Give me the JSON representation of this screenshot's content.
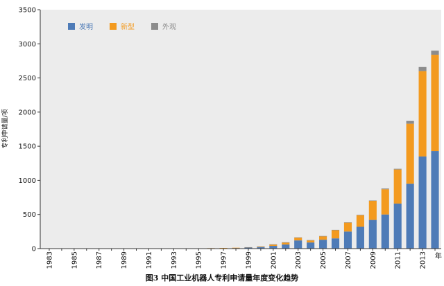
{
  "chart_data": {
    "type": "bar",
    "stacked": true,
    "title": "",
    "caption": "图3    中国工业机器人专利申请量年度变化趋势",
    "ylabel": "专利申请量/项",
    "xlabel": "年",
    "ylim": [
      0,
      3500
    ],
    "yticks": [
      "0",
      "500",
      "1000",
      "1500",
      "2000",
      "2500",
      "3000",
      "3500"
    ],
    "x_tick_labels": [
      "1983",
      "1985",
      "1987",
      "1989",
      "1991",
      "1993",
      "1995",
      "1997",
      "1999",
      "2001",
      "2003",
      "2005",
      "2007",
      "2009",
      "2011",
      "2013"
    ],
    "categories": [
      "1983",
      "1984",
      "1985",
      "1986",
      "1987",
      "1988",
      "1989",
      "1990",
      "1991",
      "1992",
      "1993",
      "1994",
      "1995",
      "1996",
      "1997",
      "1998",
      "1999",
      "2000",
      "2001",
      "2002",
      "2003",
      "2004",
      "2005",
      "2006",
      "2007",
      "2008",
      "2009",
      "2010",
      "2011",
      "2012",
      "2013",
      "2014"
    ],
    "legend_position": "top-left",
    "grid": false,
    "background_color": "#ececec",
    "series": [
      {
        "name": "发明",
        "color": "#4e7bb7",
        "values": [
          2,
          1,
          2,
          1,
          2,
          1,
          2,
          2,
          3,
          2,
          3,
          3,
          4,
          6,
          8,
          10,
          15,
          20,
          40,
          60,
          120,
          90,
          130,
          150,
          250,
          320,
          420,
          500,
          660,
          950,
          1350,
          1430
        ]
      },
      {
        "name": "新型",
        "color": "#f39a1f",
        "values": [
          0,
          0,
          0,
          0,
          0,
          0,
          0,
          0,
          0,
          0,
          0,
          0,
          1,
          1,
          2,
          3,
          5,
          10,
          20,
          30,
          40,
          30,
          50,
          120,
          130,
          170,
          280,
          370,
          500,
          880,
          1250,
          1410
        ]
      },
      {
        "name": "外观",
        "color": "#8c8c8c",
        "values": [
          0,
          0,
          0,
          0,
          0,
          0,
          0,
          0,
          0,
          0,
          0,
          0,
          0,
          0,
          0,
          0,
          1,
          2,
          3,
          3,
          5,
          5,
          5,
          5,
          5,
          5,
          5,
          10,
          10,
          40,
          60,
          60
        ]
      }
    ]
  }
}
